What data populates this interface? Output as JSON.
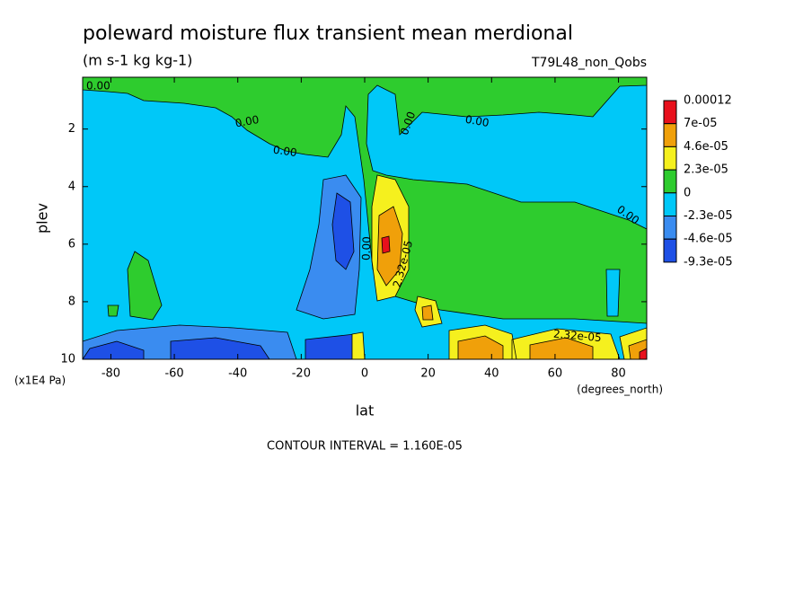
{
  "chart_data": {
    "type": "contour",
    "title": "poleward moisture flux transient mean merdional",
    "subtitle": "(m s-1 kg kg-1)",
    "dataset": "T79L48_non_Qobs",
    "x_label": "lat",
    "x_units": "(degrees_north)",
    "y_label": "plev",
    "y_units": "(x1E4 Pa)",
    "footer": "CONTOUR INTERVAL = 1.160E-05",
    "xlim": [
      -88.9,
      88.9
    ],
    "xticks": [
      -80,
      -60,
      -40,
      -20,
      0,
      20,
      40,
      60,
      80
    ],
    "ylim": [
      0.2,
      10
    ],
    "yticks": [
      2,
      4,
      6,
      8,
      10
    ],
    "levels": [
      {
        "value": 0.00012,
        "label": "0.00012"
      },
      {
        "value": 7e-05,
        "label": "7e-05"
      },
      {
        "value": 4.6e-05,
        "label": "4.6e-05"
      },
      {
        "value": 2.3e-05,
        "label": "2.3e-05"
      },
      0,
      {
        "value": -2.3e-05,
        "label": "-2.3e-05"
      },
      {
        "value": -4.6e-05,
        "label": "-4.6e-05"
      },
      {
        "value": -9.3e-05,
        "label": "-9.3e-05"
      }
    ],
    "colors": [
      "#e8101c",
      "#f0a00a",
      "#f5f01e",
      "#2ecc2e",
      "#00c8f8",
      "#3a8cf0",
      "#1e50e6"
    ],
    "contour_labels": [
      "0.00",
      "0.00",
      "0.00",
      "0.00",
      "0.00",
      "0.00",
      "0.00",
      "2.32e-05",
      "2.32e-05"
    ]
  }
}
